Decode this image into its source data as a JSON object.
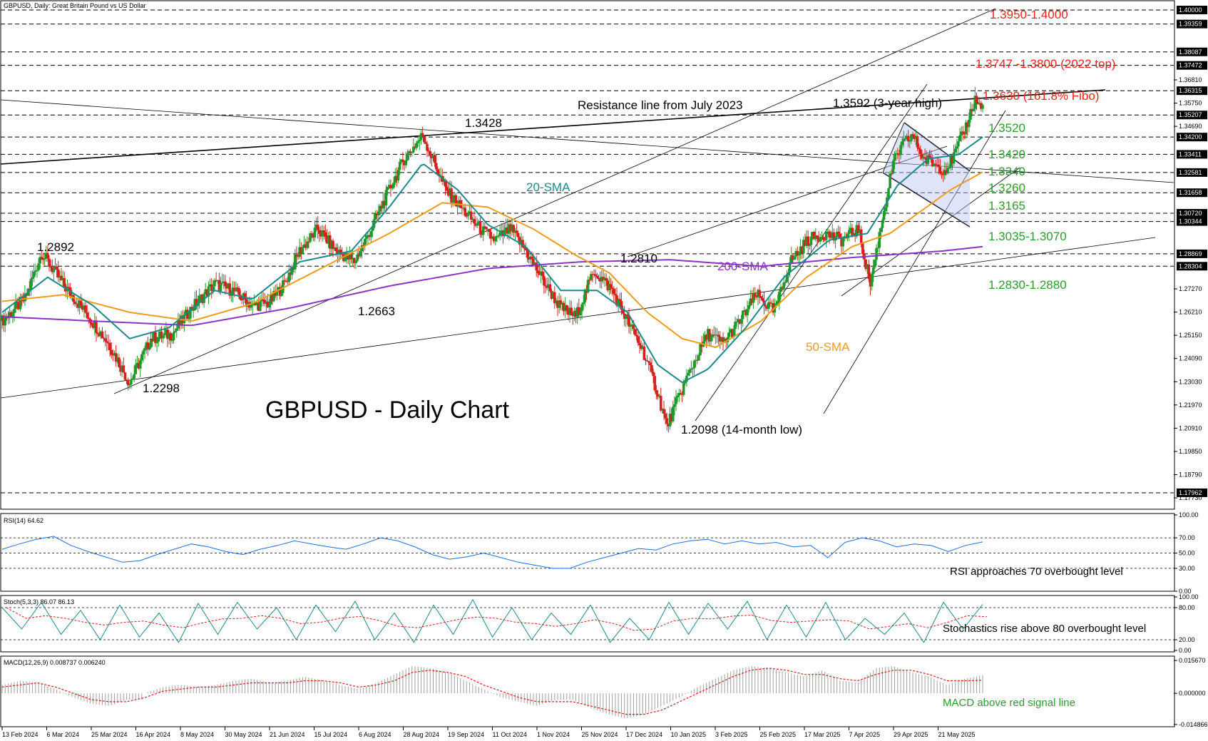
{
  "chart_data": {
    "type": "line",
    "header": "GBPUSD, Daily:  Great Britain Pound vs US Dollar",
    "title": "GBPUSD - Daily Chart",
    "ylim": [
      1.165,
      1.404
    ],
    "price_axis_ticks": [
      "1.40000",
      "1.39359",
      "1.38087",
      "1.37472",
      "1.36810",
      "1.36315",
      "1.35750",
      "1.35207",
      "1.34690",
      "1.34200",
      "1.33411",
      "1.32581",
      "1.31658",
      "1.30720",
      "1.30344",
      "1.28869",
      "1.28304",
      "1.27270",
      "1.26210",
      "1.25150",
      "1.24090",
      "1.23030",
      "1.21970",
      "1.20910",
      "1.19850",
      "1.18790",
      "1.17962",
      "1.17730"
    ],
    "highlighted_ticks": [
      "1.40000",
      "1.39359",
      "1.38087",
      "1.37472",
      "1.36315",
      "1.35207",
      "1.34200",
      "1.33411",
      "1.32581",
      "1.31658",
      "1.30720",
      "1.30344",
      "1.28869",
      "1.28304",
      "1.17962"
    ],
    "date_labels": [
      "13 Feb 2024",
      "6 Mar 2024",
      "25 Mar 2024",
      "16 Apr 2024",
      "8 May 2024",
      "30 May 2024",
      "21 Jun 2024",
      "15 Jul 2024",
      "6 Aug 2024",
      "28 Aug 2024",
      "19 Sep 2024",
      "11 Oct 2024",
      "1 Nov 2024",
      "25 Nov 2024",
      "17 Dec 2024",
      "10 Jan 2025",
      "3 Feb 2025",
      "25 Feb 2025",
      "17 Mar 2025",
      "7 Apr 2025",
      "29 Apr 2025",
      "21 May 2025"
    ],
    "price_series": {
      "name": "GBPUSD",
      "points": [
        [
          0,
          1.258
        ],
        [
          15,
          1.268
        ],
        [
          26,
          1.2892
        ],
        [
          40,
          1.275
        ],
        [
          55,
          1.262
        ],
        [
          70,
          1.248
        ],
        [
          84,
          1.2298
        ],
        [
          98,
          1.25
        ],
        [
          112,
          1.252
        ],
        [
          125,
          1.264
        ],
        [
          140,
          1.275
        ],
        [
          152,
          1.272
        ],
        [
          165,
          1.265
        ],
        [
          176,
          1.2663
        ],
        [
          186,
          1.275
        ],
        [
          196,
          1.29
        ],
        [
          208,
          1.3
        ],
        [
          220,
          1.29
        ],
        [
          232,
          1.285
        ],
        [
          243,
          1.3
        ],
        [
          255,
          1.318
        ],
        [
          265,
          1.332
        ],
        [
          277,
          1.3428
        ],
        [
          285,
          1.33
        ],
        [
          292,
          1.318
        ],
        [
          302,
          1.31
        ],
        [
          315,
          1.3
        ],
        [
          325,
          1.295
        ],
        [
          335,
          1.3
        ],
        [
          345,
          1.29
        ],
        [
          357,
          1.276
        ],
        [
          368,
          1.264
        ],
        [
          378,
          1.26
        ],
        [
          390,
          1.281
        ],
        [
          402,
          1.272
        ],
        [
          412,
          1.258
        ],
        [
          422,
          1.245
        ],
        [
          432,
          1.225
        ],
        [
          438,
          1.2098
        ],
        [
          445,
          1.222
        ],
        [
          455,
          1.238
        ],
        [
          465,
          1.252
        ],
        [
          475,
          1.248
        ],
        [
          486,
          1.258
        ],
        [
          497,
          1.27
        ],
        [
          509,
          1.262
        ],
        [
          519,
          1.285
        ],
        [
          531,
          1.295
        ],
        [
          542,
          1.298
        ],
        [
          553,
          1.295
        ],
        [
          564,
          1.3
        ],
        [
          572,
          1.275
        ],
        [
          580,
          1.305
        ],
        [
          587,
          1.33
        ],
        [
          593,
          1.338
        ],
        [
          600,
          1.343
        ],
        [
          607,
          1.332
        ],
        [
          614,
          1.33
        ],
        [
          621,
          1.327
        ],
        [
          627,
          1.333
        ],
        [
          634,
          1.345
        ],
        [
          641,
          1.3592
        ],
        [
          646,
          1.355
        ]
      ]
    },
    "sma_20": {
      "name": "20-SMA",
      "color": "#1a8a8a",
      "points": [
        [
          0,
          1.262
        ],
        [
          30,
          1.278
        ],
        [
          60,
          1.265
        ],
        [
          84,
          1.25
        ],
        [
          110,
          1.255
        ],
        [
          140,
          1.272
        ],
        [
          165,
          1.268
        ],
        [
          196,
          1.285
        ],
        [
          230,
          1.29
        ],
        [
          255,
          1.31
        ],
        [
          277,
          1.33
        ],
        [
          300,
          1.318
        ],
        [
          320,
          1.302
        ],
        [
          345,
          1.292
        ],
        [
          368,
          1.272
        ],
        [
          392,
          1.272
        ],
        [
          412,
          1.262
        ],
        [
          432,
          1.238
        ],
        [
          448,
          1.23
        ],
        [
          465,
          1.236
        ],
        [
          490,
          1.255
        ],
        [
          515,
          1.278
        ],
        [
          545,
          1.295
        ],
        [
          570,
          1.298
        ],
        [
          590,
          1.32
        ],
        [
          610,
          1.332
        ],
        [
          630,
          1.334
        ],
        [
          646,
          1.342
        ]
      ]
    },
    "sma_50": {
      "name": "50-SMA",
      "color": "#f39a1c",
      "points": [
        [
          0,
          1.267
        ],
        [
          40,
          1.27
        ],
        [
          84,
          1.262
        ],
        [
          125,
          1.258
        ],
        [
          165,
          1.266
        ],
        [
          210,
          1.282
        ],
        [
          255,
          1.298
        ],
        [
          290,
          1.312
        ],
        [
          320,
          1.31
        ],
        [
          350,
          1.3
        ],
        [
          378,
          1.288
        ],
        [
          400,
          1.28
        ],
        [
          425,
          1.262
        ],
        [
          448,
          1.25
        ],
        [
          470,
          1.246
        ],
        [
          500,
          1.258
        ],
        [
          530,
          1.278
        ],
        [
          560,
          1.292
        ],
        [
          585,
          1.298
        ],
        [
          605,
          1.308
        ],
        [
          625,
          1.318
        ],
        [
          646,
          1.326
        ]
      ]
    },
    "sma_200": {
      "name": "200-SMA",
      "color": "#8a34c4",
      "points": [
        [
          0,
          1.26
        ],
        [
          60,
          1.258
        ],
        [
          125,
          1.256
        ],
        [
          190,
          1.264
        ],
        [
          255,
          1.274
        ],
        [
          320,
          1.282
        ],
        [
          380,
          1.285
        ],
        [
          440,
          1.286
        ],
        [
          500,
          1.283
        ],
        [
          560,
          1.287
        ],
        [
          620,
          1.29
        ],
        [
          646,
          1.292
        ]
      ]
    },
    "rsi": {
      "label": "RSI(14) 64.62",
      "ticks": [
        "100.00",
        "70.00",
        "50.00",
        "30.00",
        "0.00"
      ],
      "levels": [
        70,
        50,
        30
      ],
      "values": [
        55,
        62,
        68,
        72,
        60,
        52,
        45,
        38,
        40,
        48,
        55,
        62,
        58,
        52,
        48,
        55,
        60,
        66,
        62,
        58,
        55,
        62,
        70,
        66,
        58,
        48,
        42,
        45,
        50,
        44,
        38,
        34,
        30,
        30,
        38,
        44,
        50,
        56,
        54,
        62,
        66,
        68,
        62,
        66,
        62,
        64,
        58,
        60,
        44,
        64,
        70,
        66,
        58,
        62,
        60,
        52,
        60,
        64.62
      ]
    },
    "stoch": {
      "label": "Stoch(5,3,3) 86.07 86.13",
      "ticks": [
        "100.00",
        "80.00",
        "20.00",
        "0.00"
      ],
      "levels": [
        80,
        20
      ],
      "values": [
        80,
        40,
        90,
        30,
        75,
        20,
        85,
        25,
        70,
        15,
        88,
        30,
        90,
        40,
        80,
        20,
        85,
        35,
        92,
        20,
        70,
        15,
        85,
        30,
        95,
        25,
        80,
        20,
        70,
        30,
        85,
        15,
        60,
        20,
        90,
        30,
        88,
        40,
        92,
        20,
        85,
        25,
        90,
        20,
        60,
        30,
        70,
        15,
        90,
        40,
        86
      ]
    },
    "macd": {
      "label": "MACD(12,26,9) 0.008737 0.006240",
      "ticks": [
        "0.015670",
        "0.000000",
        "-0.014866"
      ],
      "hist": [
        0.004,
        0.006,
        0.005,
        0.002,
        -0.002,
        -0.005,
        -0.006,
        -0.003,
        0.0,
        0.003,
        0.004,
        0.003,
        0.004,
        0.006,
        0.007,
        0.005,
        0.006,
        0.008,
        0.006,
        0.004,
        0.002,
        0.005,
        0.009,
        0.013,
        0.012,
        0.01,
        0.006,
        0.002,
        -0.002,
        -0.004,
        -0.006,
        -0.003,
        -0.003,
        -0.007,
        -0.01,
        -0.012,
        -0.01,
        -0.006,
        -0.002,
        0.003,
        0.007,
        0.011,
        0.013,
        0.012,
        0.01,
        0.008,
        0.011,
        0.006,
        0.005,
        0.012,
        0.013,
        0.01,
        0.008,
        0.004,
        0.007,
        0.008737
      ],
      "signal": [
        0.003,
        0.004,
        0.005,
        0.003,
        0.0,
        -0.003,
        -0.004,
        -0.004,
        -0.002,
        0.001,
        0.002,
        0.003,
        0.003,
        0.004,
        0.005,
        0.005,
        0.005,
        0.006,
        0.006,
        0.005,
        0.003,
        0.004,
        0.006,
        0.01,
        0.011,
        0.01,
        0.008,
        0.004,
        0.001,
        -0.002,
        -0.004,
        -0.004,
        -0.004,
        -0.006,
        -0.008,
        -0.01,
        -0.01,
        -0.008,
        -0.004,
        0.0,
        0.004,
        0.008,
        0.011,
        0.012,
        0.011,
        0.009,
        0.009,
        0.007,
        0.006,
        0.009,
        0.011,
        0.011,
        0.009,
        0.006,
        0.006,
        0.00624
      ]
    },
    "levels": [
      {
        "text": "1.3950-1.4000",
        "color": "#e8231d"
      },
      {
        "text": "1.3747 -1.3800 (2022 top)",
        "color": "#e8231d"
      },
      {
        "text": "1.3630 (161.8% Fibo)",
        "color": "#e8231d"
      },
      {
        "text": "1.3520",
        "color": "#2e9a2e"
      },
      {
        "text": "1.3420",
        "color": "#2e9a2e"
      },
      {
        "text": "1.3340",
        "color": "#2e9a2e"
      },
      {
        "text": "1.3260",
        "color": "#2e9a2e"
      },
      {
        "text": "1.3165",
        "color": "#2e9a2e"
      },
      {
        "text": "1.3035-1.3070",
        "color": "#2e9a2e"
      },
      {
        "text": "1.2830-1.2880",
        "color": "#2e9a2e"
      }
    ],
    "annotations": {
      "resistance": "Resistance line from July 2023",
      "high_3y": "1.3592 (3-year high)",
      "p1": "1.3428",
      "p2": "1.2892",
      "p3": "1.2663",
      "p4": "1.2810",
      "p5": "1.2298",
      "p6": "1.2098 (14-month low)",
      "sma20": "20-SMA",
      "sma50": "50-SMA",
      "sma200": "200-SMA",
      "rsi_note": "RSI approaches 70 overbought level",
      "stoch_note": "Stochastics rise above 80 overbought level",
      "macd_note": "MACD above red signal line"
    }
  }
}
